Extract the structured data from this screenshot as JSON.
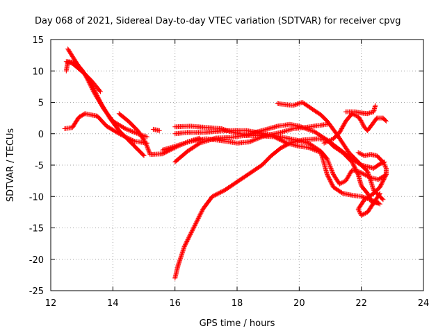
{
  "chart_data": {
    "type": "scatter",
    "title": "Day 068 of 2021, Sidereal Day-to-day VTEC variation (SDTVAR) for receiver cpvg",
    "xlabel": "GPS time / hours",
    "ylabel": "SDTVAR / TECUs",
    "xlim": [
      12,
      24
    ],
    "ylim": [
      -25,
      15
    ],
    "xticks": [
      12,
      14,
      16,
      18,
      20,
      22,
      24
    ],
    "yticks": [
      15,
      10,
      5,
      0,
      -5,
      -10,
      -15,
      -20,
      -25
    ],
    "xtick_labels": [
      "12",
      "14",
      "16",
      "18",
      "20",
      "22",
      "24"
    ],
    "ytick_labels": [
      "15",
      "10",
      "5",
      "0",
      "-5",
      "-10",
      "-15",
      "-20",
      "-25"
    ],
    "grid": true,
    "marker": "+",
    "color": "#ff0000",
    "series": [
      {
        "name": "s1",
        "points": [
          [
            12.55,
            13.5
          ],
          [
            12.7,
            12.3
          ],
          [
            13.0,
            10.0
          ],
          [
            13.3,
            8.5
          ],
          [
            13.6,
            6.7
          ]
        ]
      },
      {
        "name": "s2",
        "points": [
          [
            12.5,
            10.0
          ],
          [
            12.55,
            11.5
          ],
          [
            12.8,
            11.3
          ],
          [
            13.0,
            10.2
          ],
          [
            13.3,
            8.0
          ],
          [
            13.6,
            5.0
          ],
          [
            13.9,
            2.5
          ],
          [
            14.2,
            0.5
          ],
          [
            14.6,
            -1.5
          ],
          [
            15.0,
            -3.5
          ]
        ]
      },
      {
        "name": "s3",
        "points": [
          [
            12.5,
            11.5
          ],
          [
            12.7,
            11.2
          ],
          [
            13.1,
            9.5
          ],
          [
            13.4,
            6.5
          ],
          [
            13.7,
            4.0
          ],
          [
            14.0,
            2.0
          ],
          [
            14.4,
            0.8
          ],
          [
            14.8,
            0.0
          ],
          [
            15.1,
            -0.5
          ]
        ]
      },
      {
        "name": "s4",
        "points": [
          [
            12.45,
            0.8
          ],
          [
            12.7,
            1.0
          ],
          [
            12.9,
            2.6
          ],
          [
            13.1,
            3.2
          ],
          [
            13.3,
            3.0
          ],
          [
            13.5,
            2.8
          ],
          [
            13.8,
            1.2
          ],
          [
            14.1,
            0.3
          ],
          [
            14.4,
            -0.5
          ],
          [
            14.7,
            -1.2
          ],
          [
            15.1,
            -1.5
          ]
        ]
      },
      {
        "name": "s5",
        "points": [
          [
            14.2,
            3.2
          ],
          [
            14.5,
            2.0
          ],
          [
            14.8,
            0.5
          ],
          [
            15.0,
            -1.0
          ],
          [
            15.1,
            -2.0
          ],
          [
            15.2,
            -3.3
          ],
          [
            15.6,
            -3.2
          ],
          [
            16.0,
            -2.2
          ],
          [
            16.4,
            -1.3
          ],
          [
            16.8,
            -0.7
          ]
        ]
      },
      {
        "name": "s6",
        "points": [
          [
            15.3,
            0.7
          ],
          [
            15.5,
            0.5
          ]
        ]
      },
      {
        "name": "s7",
        "points": [
          [
            16.0,
            1.1
          ],
          [
            16.5,
            1.2
          ],
          [
            17.0,
            1.0
          ],
          [
            17.5,
            0.8
          ],
          [
            17.8,
            0.3
          ],
          [
            18.3,
            -0.2
          ],
          [
            18.8,
            0.5
          ],
          [
            19.3,
            1.2
          ],
          [
            19.7,
            1.5
          ],
          [
            20.0,
            1.2
          ],
          [
            20.5,
            0.3
          ],
          [
            20.9,
            -1.0
          ],
          [
            21.3,
            -2.5
          ],
          [
            21.7,
            -4.0
          ],
          [
            22.0,
            -5.0
          ],
          [
            22.4,
            -5.5
          ],
          [
            22.6,
            -4.8
          ],
          [
            22.75,
            -4.5
          ]
        ]
      },
      {
        "name": "s8",
        "points": [
          [
            16.0,
            -4.5
          ],
          [
            16.4,
            -2.8
          ],
          [
            16.8,
            -1.5
          ],
          [
            17.3,
            -0.7
          ],
          [
            17.8,
            -0.6
          ],
          [
            18.2,
            -0.3
          ],
          [
            18.7,
            -0.3
          ],
          [
            19.2,
            -0.5
          ],
          [
            19.6,
            -1.5
          ],
          [
            20.0,
            -2.0
          ],
          [
            20.3,
            -2.2
          ],
          [
            20.7,
            -3.0
          ],
          [
            20.9,
            -6.5
          ],
          [
            21.1,
            -8.5
          ],
          [
            21.4,
            -9.5
          ],
          [
            21.7,
            -9.8
          ],
          [
            22.0,
            -10.0
          ],
          [
            22.3,
            -10.5
          ],
          [
            22.6,
            -11.2
          ]
        ]
      },
      {
        "name": "s9",
        "points": [
          [
            15.6,
            -2.6
          ],
          [
            16.0,
            -2.0
          ],
          [
            16.5,
            -1.2
          ],
          [
            17.0,
            -0.8
          ],
          [
            17.5,
            -1.1
          ],
          [
            18.0,
            -1.5
          ],
          [
            18.4,
            -1.3
          ],
          [
            18.9,
            -0.3
          ],
          [
            19.4,
            0.2
          ],
          [
            19.8,
            0.8
          ],
          [
            20.2,
            1.0
          ],
          [
            20.6,
            1.3
          ],
          [
            20.9,
            1.5
          ]
        ]
      },
      {
        "name": "s10",
        "points": [
          [
            16.0,
            -23.0
          ],
          [
            16.1,
            -21.0
          ],
          [
            16.3,
            -18.0
          ],
          [
            16.6,
            -15.0
          ],
          [
            16.9,
            -12.0
          ],
          [
            17.2,
            -10.0
          ],
          [
            17.6,
            -9.0
          ],
          [
            17.9,
            -8.0
          ],
          [
            18.2,
            -7.0
          ],
          [
            18.5,
            -6.0
          ],
          [
            18.8,
            -5.0
          ],
          [
            19.1,
            -3.5
          ],
          [
            19.4,
            -2.3
          ],
          [
            19.7,
            -1.5
          ],
          [
            20.1,
            -1.0
          ],
          [
            20.6,
            -0.8
          ],
          [
            20.9,
            -1.0
          ],
          [
            21.1,
            -2.0
          ],
          [
            21.4,
            -3.0
          ],
          [
            21.7,
            -4.5
          ],
          [
            21.9,
            -6.5
          ],
          [
            22.0,
            -8.3
          ],
          [
            22.2,
            -9.5
          ],
          [
            22.35,
            -11.0
          ],
          [
            22.55,
            -11.0
          ]
        ]
      },
      {
        "name": "s11",
        "points": [
          [
            16.0,
            0.0
          ],
          [
            16.4,
            0.2
          ],
          [
            16.9,
            0.2
          ],
          [
            17.4,
            0.4
          ],
          [
            17.8,
            0.5
          ],
          [
            18.3,
            0.5
          ],
          [
            18.9,
            0.0
          ],
          [
            19.4,
            -0.5
          ],
          [
            19.9,
            -1.0
          ],
          [
            20.3,
            -1.5
          ],
          [
            20.7,
            -2.8
          ],
          [
            20.9,
            -4.0
          ],
          [
            21.1,
            -6.5
          ],
          [
            21.3,
            -8.0
          ],
          [
            21.5,
            -7.5
          ],
          [
            21.7,
            -5.8
          ],
          [
            21.9,
            -6.0
          ],
          [
            22.1,
            -6.5
          ],
          [
            22.3,
            -7.0
          ],
          [
            22.55,
            -7.3
          ],
          [
            22.8,
            -6.5
          ]
        ]
      },
      {
        "name": "s12",
        "points": [
          [
            19.3,
            4.8
          ],
          [
            19.8,
            4.5
          ],
          [
            20.1,
            5.0
          ],
          [
            20.4,
            4.0
          ],
          [
            20.7,
            3.0
          ],
          [
            20.9,
            2.0
          ],
          [
            21.2,
            0.0
          ],
          [
            21.4,
            -1.5
          ],
          [
            21.6,
            -3.0
          ],
          [
            21.8,
            -4.0
          ],
          [
            22.0,
            -5.0
          ],
          [
            22.2,
            -6.0
          ],
          [
            22.4,
            -9.0
          ],
          [
            22.7,
            -10.5
          ]
        ]
      },
      {
        "name": "s13",
        "points": [
          [
            21.5,
            3.5
          ],
          [
            21.8,
            3.5
          ],
          [
            22.0,
            3.3
          ],
          [
            22.2,
            3.2
          ],
          [
            22.4,
            3.5
          ],
          [
            22.45,
            4.5
          ]
        ]
      },
      {
        "name": "s14",
        "points": [
          [
            20.8,
            -1.5
          ],
          [
            21.1,
            -0.8
          ],
          [
            21.3,
            0.2
          ],
          [
            21.5,
            2.0
          ],
          [
            21.7,
            3.2
          ],
          [
            21.9,
            2.7
          ],
          [
            22.0,
            2.0
          ],
          [
            22.1,
            1.0
          ],
          [
            22.2,
            0.5
          ],
          [
            22.5,
            2.5
          ],
          [
            22.7,
            2.5
          ],
          [
            22.8,
            2.0
          ]
        ]
      },
      {
        "name": "s15",
        "points": [
          [
            21.9,
            -3.0
          ],
          [
            22.1,
            -3.5
          ],
          [
            22.3,
            -3.3
          ],
          [
            22.5,
            -3.5
          ],
          [
            22.7,
            -4.5
          ],
          [
            22.8,
            -5.5
          ],
          [
            22.8,
            -6.5
          ],
          [
            22.6,
            -8.5
          ],
          [
            22.4,
            -9.5
          ],
          [
            22.1,
            -10.5
          ],
          [
            21.9,
            -12.0
          ],
          [
            22.0,
            -13.0
          ],
          [
            22.2,
            -12.5
          ],
          [
            22.4,
            -11.0
          ],
          [
            22.6,
            -9.5
          ]
        ]
      }
    ]
  }
}
